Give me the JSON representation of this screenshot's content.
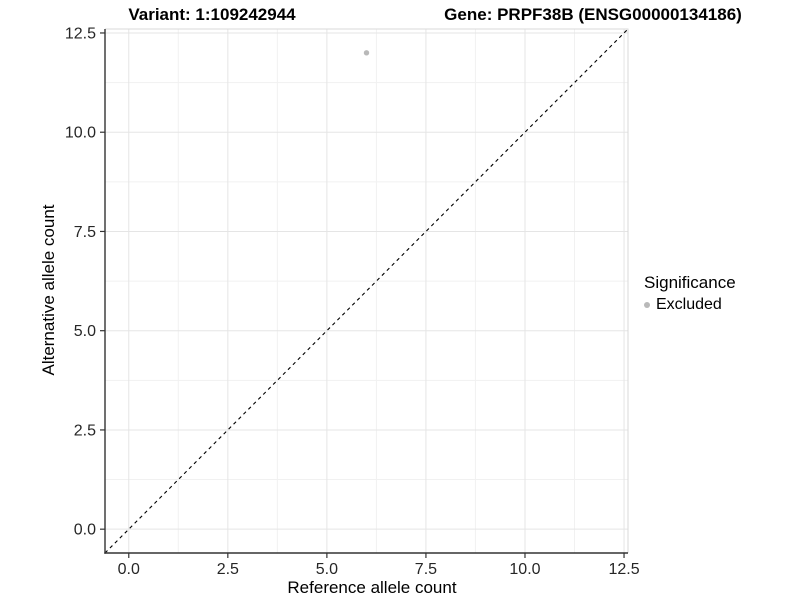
{
  "chart_data": {
    "type": "scatter",
    "title_left": "Variant: 1:109242944",
    "title_right": "Gene: PRPF38B (ENSG00000134186)",
    "xlabel": "Reference allele count",
    "ylabel": "Alternative allele count",
    "xlim": [
      -0.6,
      12.6
    ],
    "ylim": [
      -0.6,
      12.6
    ],
    "x_tick_values": [
      0,
      2.5,
      5,
      7.5,
      10,
      12.5
    ],
    "x_tick_labels": [
      "0.0",
      "2.5",
      "5.0",
      "7.5",
      "10.0",
      "12.5"
    ],
    "y_tick_values": [
      0,
      2.5,
      5,
      7.5,
      10,
      12.5
    ],
    "y_tick_labels": [
      "0.0",
      "2.5",
      "5.0",
      "7.5",
      "10.0",
      "12.5"
    ],
    "x_minor_tick_values": [
      1.25,
      3.75,
      6.25,
      8.75,
      11.25
    ],
    "y_minor_tick_values": [
      1.25,
      3.75,
      6.25,
      8.75,
      11.25
    ],
    "grid": true,
    "points": [
      {
        "x": 6,
        "y": 12,
        "series": "Excluded"
      }
    ],
    "reference_line": {
      "style": "dashed",
      "from": [
        -0.6,
        -0.6
      ],
      "to": [
        12.6,
        12.6
      ],
      "meaning": "identity y=x"
    },
    "legend": {
      "position": "right",
      "title": "Significance",
      "items": [
        {
          "label": "Excluded",
          "color": "#b9b9b9"
        }
      ]
    },
    "colors": {
      "point": "#b9b9b9",
      "dashed_line": "#000000",
      "axis_line": "#333333",
      "tick_label": "#262626",
      "grid_major": "#e5e5e5",
      "grid_minor": "#f1f1f1",
      "panel_border": "#d9d9d9",
      "background": "#ffffff"
    }
  }
}
